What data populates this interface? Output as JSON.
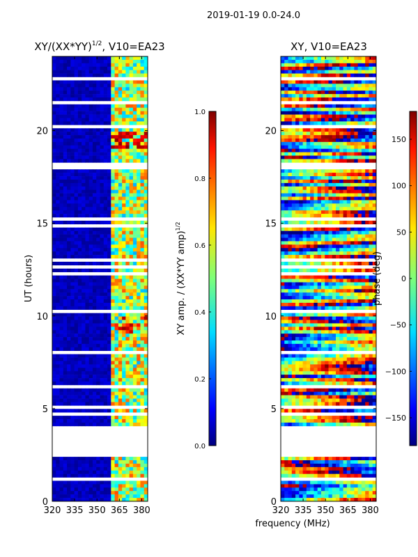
{
  "suptitle": "2019-01-19 0.0-24.0",
  "shared_xlabel": "frequency (MHz)",
  "chart_data": [
    {
      "type": "heatmap",
      "title_main": "XY/(XX*YY)",
      "title_sup": "1/2",
      "title_tail": ", V10=EA23",
      "ylabel": "UT (hours)",
      "xlim": [
        320,
        384
      ],
      "ylim": [
        0,
        24
      ],
      "xticks": [
        320,
        335,
        350,
        365,
        380
      ],
      "yticks": [
        0,
        5,
        10,
        15,
        20
      ],
      "no_data_hours": [
        2.4,
        4.05
      ],
      "dominant_band_mhz": [
        360,
        384
      ],
      "colorbar": {
        "label_main": "XY amp. / (XX*YY amp)",
        "label_sup": "1/2",
        "range": [
          0.0,
          1.0
        ],
        "ticks": [
          0.0,
          0.2,
          0.4,
          0.6,
          0.8,
          1.0
        ],
        "tick_labels": [
          "0.0",
          "0.2",
          "0.4",
          "0.6",
          "0.8",
          "1.0"
        ]
      }
    },
    {
      "type": "heatmap",
      "title": "XY, V10=EA23",
      "ylabel": "",
      "xlim": [
        320,
        384
      ],
      "ylim": [
        0,
        24
      ],
      "xticks": [
        320,
        335,
        350,
        365,
        380
      ],
      "yticks": [
        0,
        5,
        10,
        15,
        20
      ],
      "no_data_hours": [
        2.4,
        4.05
      ],
      "colorbar": {
        "label": "phase (deg)",
        "range": [
          -180,
          180
        ],
        "ticks": [
          -150,
          -100,
          -50,
          0,
          50,
          100,
          150
        ],
        "tick_labels": [
          "−150",
          "−100",
          "−50",
          "0",
          "50",
          "100",
          "150"
        ]
      }
    }
  ]
}
